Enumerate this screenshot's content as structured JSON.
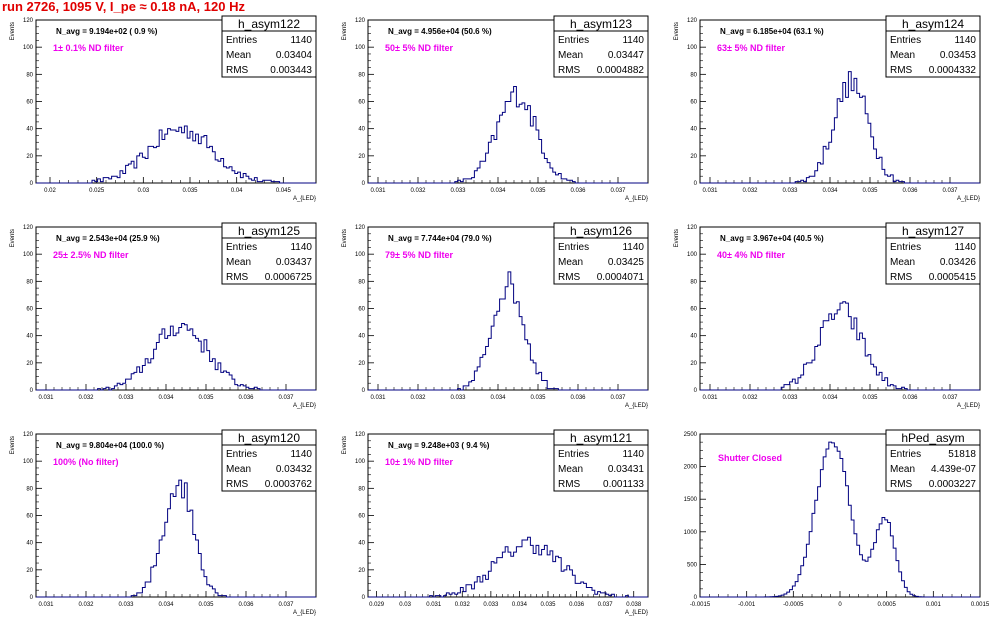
{
  "header": {
    "title": "run 2726,  1095 V, I_pe ≈ 0.18 nA, 120 Hz"
  },
  "colors": {
    "title": "#e00000",
    "annotation": "#ee00ee",
    "histogram": "#000080"
  },
  "chart_data": [
    {
      "type": "histogram",
      "name": "h_asym122",
      "title": "N_avg = 9.194e+02 ( 0.9 %)",
      "annotation": "1± 0.1% ND filter",
      "stats": {
        "Entries": "1140",
        "Mean": "0.03404",
        "RMS": "0.003443"
      },
      "ylabel": "Events",
      "xlabel": "A_{LED}",
      "xlim": [
        0.0185,
        0.0485
      ],
      "ylim": [
        0,
        120
      ],
      "xticks": [
        0.02,
        0.025,
        0.03,
        0.035,
        0.04,
        0.045
      ],
      "xtick_labels": [
        "0.02",
        "0.025",
        "0.03",
        "0.035",
        "0.04",
        "0.045"
      ],
      "yticks": [
        0,
        20,
        40,
        60,
        80,
        100,
        120
      ],
      "mean": 0.03404,
      "sigma": 0.003443,
      "entries": 1140
    },
    {
      "type": "histogram",
      "name": "h_asym123",
      "title": "N_avg = 4.956e+04 (50.6 %)",
      "annotation": "50± 5% ND filter",
      "stats": {
        "Entries": "1140",
        "Mean": "0.03447",
        "RMS": "0.0004882"
      },
      "ylabel": "Events",
      "xlabel": "A_{LED}",
      "xlim": [
        0.03075,
        0.03775
      ],
      "ylim": [
        0,
        120
      ],
      "xticks": [
        0.031,
        0.032,
        0.033,
        0.034,
        0.035,
        0.036,
        0.037
      ],
      "xtick_labels": [
        "0.031",
        "0.032",
        "0.033",
        "0.034",
        "0.035",
        "0.036",
        "0.037"
      ],
      "yticks": [
        0,
        20,
        40,
        60,
        80,
        100,
        120
      ],
      "mean": 0.03447,
      "sigma": 0.0004882,
      "entries": 1140
    },
    {
      "type": "histogram",
      "name": "h_asym124",
      "title": "N_avg = 6.185e+04 (63.1 %)",
      "annotation": "63± 5% ND filter",
      "stats": {
        "Entries": "1140",
        "Mean": "0.03453",
        "RMS": "0.0004332"
      },
      "ylabel": "Events",
      "xlabel": "A_{LED}",
      "xlim": [
        0.03075,
        0.03775
      ],
      "ylim": [
        0,
        120
      ],
      "xticks": [
        0.031,
        0.032,
        0.033,
        0.034,
        0.035,
        0.036,
        0.037
      ],
      "xtick_labels": [
        "0.031",
        "0.032",
        "0.033",
        "0.034",
        "0.035",
        "0.036",
        "0.037"
      ],
      "yticks": [
        0,
        20,
        40,
        60,
        80,
        100,
        120
      ],
      "mean": 0.03453,
      "sigma": 0.0004332,
      "entries": 1140
    },
    {
      "type": "histogram",
      "name": "h_asym125",
      "title": "N_avg = 2.543e+04 (25.9 %)",
      "annotation": "25± 2.5% ND filter",
      "stats": {
        "Entries": "1140",
        "Mean": "0.03437",
        "RMS": "0.0006725"
      },
      "ylabel": "Events",
      "xlabel": "A_{LED}",
      "xlim": [
        0.03075,
        0.03775
      ],
      "ylim": [
        0,
        120
      ],
      "xticks": [
        0.031,
        0.032,
        0.033,
        0.034,
        0.035,
        0.036,
        0.037
      ],
      "xtick_labels": [
        "0.031",
        "0.032",
        "0.033",
        "0.034",
        "0.035",
        "0.036",
        "0.037"
      ],
      "yticks": [
        0,
        20,
        40,
        60,
        80,
        100,
        120
      ],
      "mean": 0.03437,
      "sigma": 0.0006725,
      "entries": 1140
    },
    {
      "type": "histogram",
      "name": "h_asym126",
      "title": "N_avg = 7.744e+04 (79.0 %)",
      "annotation": "79± 5% ND filter",
      "stats": {
        "Entries": "1140",
        "Mean": "0.03425",
        "RMS": "0.0004071"
      },
      "ylabel": "Events",
      "xlabel": "A_{LED}",
      "xlim": [
        0.03075,
        0.03775
      ],
      "ylim": [
        0,
        120
      ],
      "xticks": [
        0.031,
        0.032,
        0.033,
        0.034,
        0.035,
        0.036,
        0.037
      ],
      "xtick_labels": [
        "0.031",
        "0.032",
        "0.033",
        "0.034",
        "0.035",
        "0.036",
        "0.037"
      ],
      "yticks": [
        0,
        20,
        40,
        60,
        80,
        100,
        120
      ],
      "mean": 0.03425,
      "sigma": 0.0004071,
      "entries": 1140
    },
    {
      "type": "histogram",
      "name": "h_asym127",
      "title": "N_avg = 3.967e+04 (40.5 %)",
      "annotation": "40± 4% ND filter",
      "stats": {
        "Entries": "1140",
        "Mean": "0.03426",
        "RMS": "0.0005415"
      },
      "ylabel": "Events",
      "xlabel": "A_{LED}",
      "xlim": [
        0.03075,
        0.03775
      ],
      "ylim": [
        0,
        120
      ],
      "xticks": [
        0.031,
        0.032,
        0.033,
        0.034,
        0.035,
        0.036,
        0.037
      ],
      "xtick_labels": [
        "0.031",
        "0.032",
        "0.033",
        "0.034",
        "0.035",
        "0.036",
        "0.037"
      ],
      "yticks": [
        0,
        20,
        40,
        60,
        80,
        100,
        120
      ],
      "mean": 0.03426,
      "sigma": 0.0005415,
      "entries": 1140
    },
    {
      "type": "histogram",
      "name": "h_asym120",
      "title": "N_avg = 9.804e+04 (100.0 %)",
      "annotation": "100% (No filter)",
      "stats": {
        "Entries": "1140",
        "Mean": "0.03432",
        "RMS": "0.0003762"
      },
      "ylabel": "Events",
      "xlabel": "A_{LED}",
      "xlim": [
        0.03075,
        0.03775
      ],
      "ylim": [
        0,
        120
      ],
      "xticks": [
        0.031,
        0.032,
        0.033,
        0.034,
        0.035,
        0.036,
        0.037
      ],
      "xtick_labels": [
        "0.031",
        "0.032",
        "0.033",
        "0.034",
        "0.035",
        "0.036",
        "0.037"
      ],
      "yticks": [
        0,
        20,
        40,
        60,
        80,
        100,
        120
      ],
      "mean": 0.03432,
      "sigma": 0.0003762,
      "entries": 1140
    },
    {
      "type": "histogram",
      "name": "h_asym121",
      "title": "N_avg = 9.248e+03 ( 9.4 %)",
      "annotation": "10± 1% ND filter",
      "stats": {
        "Entries": "1140",
        "Mean": "0.03431",
        "RMS": "0.001133"
      },
      "ylabel": "Events",
      "xlabel": "A_{LED}",
      "xlim": [
        0.0287,
        0.0385
      ],
      "ylim": [
        0,
        120
      ],
      "xticks": [
        0.029,
        0.03,
        0.031,
        0.032,
        0.033,
        0.034,
        0.035,
        0.036,
        0.037,
        0.038
      ],
      "xtick_labels": [
        "0.029",
        "0.03",
        "0.031",
        "0.032",
        "0.033",
        "0.034",
        "0.035",
        "0.036",
        "0.037",
        "0.038"
      ],
      "yticks": [
        0,
        20,
        40,
        60,
        80,
        100,
        120
      ],
      "mean": 0.03431,
      "sigma": 0.001133,
      "entries": 1140
    },
    {
      "type": "histogram",
      "name": "hPed_asym",
      "title": "",
      "annotation": "Shutter Closed",
      "stats": {
        "Entries": "51818",
        "Mean": "4.439e-07",
        "RMS": "0.0003227"
      },
      "ylabel": "",
      "xlabel": "",
      "xlim": [
        -0.0015,
        0.0015
      ],
      "ylim": [
        0,
        2500
      ],
      "xticks": [
        -0.0015,
        -0.001,
        -0.0005,
        0,
        0.0005,
        0.001,
        0.0015
      ],
      "xtick_labels": [
        "-0.0015",
        "-0.001",
        "-0.0005",
        "0",
        "0.0005",
        "0.001",
        "0.0015"
      ],
      "yticks": [
        0,
        500,
        1000,
        1500,
        2000,
        2500
      ],
      "components": [
        {
          "mean": -8e-05,
          "sigma": 0.00018,
          "peak": 2400
        },
        {
          "mean": 0.00048,
          "sigma": 0.00011,
          "peak": 1200
        }
      ],
      "entries": 51818
    }
  ]
}
